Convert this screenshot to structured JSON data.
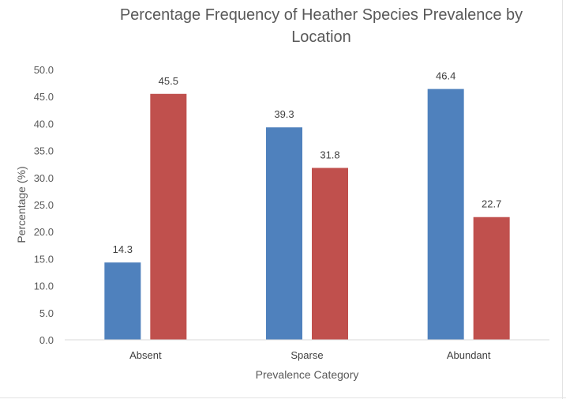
{
  "chart_data": {
    "type": "bar",
    "title": "Percentage Frequency of Heather Species Prevalence by Location",
    "title_lines": [
      "Percentage Frequency of Heather Species Prevalence by",
      "Location"
    ],
    "xlabel": "Prevalence Category",
    "ylabel": "Percentage (%)",
    "categories": [
      "Absent",
      "Sparse",
      "Abundant"
    ],
    "series": [
      {
        "values": [
          14.3,
          39.3,
          46.4
        ],
        "color": "#4f81bd",
        "labels": [
          "14.3",
          "39.3",
          "46.4"
        ]
      },
      {
        "values": [
          45.5,
          31.8,
          22.7
        ],
        "color": "#c0504d",
        "labels": [
          "45.5",
          "31.8",
          "22.7"
        ]
      }
    ],
    "ylim": [
      0,
      50
    ],
    "yticks": [
      "0.0",
      "5.0",
      "10.0",
      "15.0",
      "20.0",
      "25.0",
      "30.0",
      "35.0",
      "40.0",
      "45.0",
      "50.0"
    ],
    "grid": false,
    "legend": "none"
  }
}
